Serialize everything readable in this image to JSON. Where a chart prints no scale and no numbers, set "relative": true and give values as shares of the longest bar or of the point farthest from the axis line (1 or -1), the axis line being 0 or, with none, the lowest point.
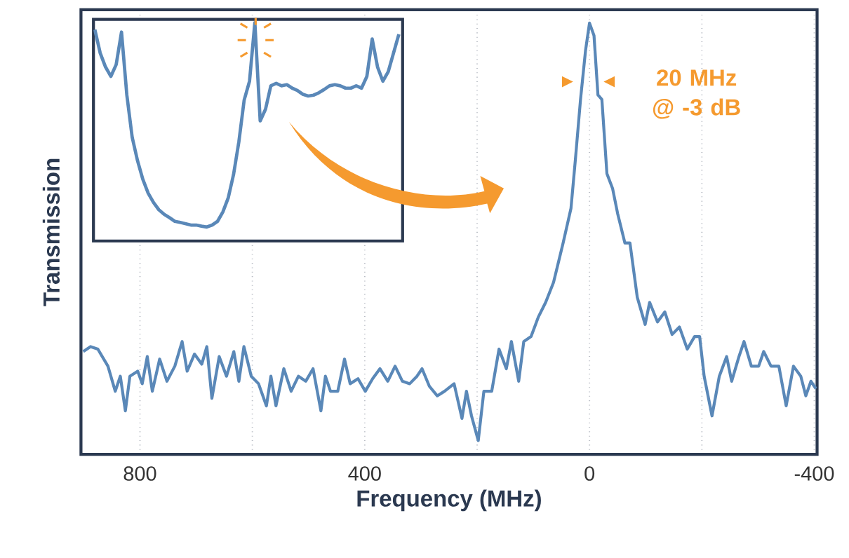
{
  "chart_data": [
    {
      "type": "line",
      "xlabel": "Frequency (MHz)",
      "ylabel": "Transmission",
      "relative": true,
      "grid": "x",
      "xlim": [
        905,
        -405
      ],
      "xticks": [
        800,
        {
          "value": 600,
          "label": null
        },
        400,
        {
          "value": 200,
          "label": null
        },
        0,
        {
          "value": -200,
          "label": null
        },
        -400
      ],
      "annotations": [
        "20 MHz @ -3 dB"
      ],
      "x": [
        901,
        888,
        875,
        857,
        844,
        835,
        826,
        818,
        804,
        796,
        787,
        778,
        765,
        752,
        738,
        725,
        716,
        703,
        690,
        681,
        672,
        659,
        646,
        633,
        624,
        615,
        602,
        589,
        575,
        567,
        558,
        544,
        531,
        518,
        505,
        492,
        478,
        470,
        461,
        448,
        436,
        426,
        412,
        399,
        386,
        373,
        359,
        346,
        333,
        320,
        307,
        298,
        285,
        271,
        258,
        241,
        227,
        219,
        210,
        198,
        188,
        174,
        161,
        148,
        139,
        126,
        117,
        104,
        91,
        78,
        64,
        47,
        33,
        25,
        16,
        7,
        0,
        -8,
        -15,
        -22,
        -31,
        -41,
        -50,
        -63,
        -72,
        -85,
        -99,
        -107,
        -121,
        -134,
        -147,
        -160,
        -174,
        -187,
        -196,
        -204,
        -218,
        -231,
        -244,
        -253,
        -266,
        -275,
        -288,
        -301,
        -310,
        -323,
        -337,
        -350,
        -363,
        -376,
        -385,
        -394,
        -403
      ],
      "series": [
        {
          "color": "#5a88b8",
          "values": [
            0.213,
            0.225,
            0.219,
            0.178,
            0.118,
            0.154,
            0.071,
            0.154,
            0.166,
            0.136,
            0.201,
            0.118,
            0.195,
            0.142,
            0.178,
            0.237,
            0.166,
            0.207,
            0.183,
            0.225,
            0.101,
            0.201,
            0.154,
            0.213,
            0.142,
            0.225,
            0.154,
            0.136,
            0.083,
            0.154,
            0.083,
            0.172,
            0.118,
            0.154,
            0.142,
            0.172,
            0.071,
            0.154,
            0.118,
            0.118,
            0.195,
            0.136,
            0.148,
            0.118,
            0.148,
            0.172,
            0.142,
            0.178,
            0.142,
            0.136,
            0.154,
            0.172,
            0.13,
            0.107,
            0.118,
            0.136,
            0.053,
            0.118,
            0.059,
            0,
            0.118,
            0.118,
            0.219,
            0.172,
            0.237,
            0.142,
            0.237,
            0.249,
            0.296,
            0.331,
            0.379,
            0.473,
            0.556,
            0.675,
            0.817,
            0.935,
            1,
            0.97,
            0.828,
            0.817,
            0.639,
            0.604,
            0.544,
            0.473,
            0.473,
            0.343,
            0.278,
            0.331,
            0.284,
            0.308,
            0.254,
            0.272,
            0.219,
            0.249,
            0.249,
            0.154,
            0.059,
            0.154,
            0.201,
            0.142,
            0.201,
            0.237,
            0.178,
            0.178,
            0.213,
            0.178,
            0.178,
            0.083,
            0.178,
            0.154,
            0.107,
            0.142,
            0.124
          ]
        }
      ]
    },
    {
      "type": "line",
      "relative": true,
      "categories": [
        null,
        null,
        null,
        null,
        null,
        null,
        null,
        null,
        null,
        null,
        null,
        null,
        null,
        null,
        null,
        null,
        null,
        null,
        null,
        null,
        null,
        null,
        null,
        null,
        null,
        null,
        null,
        null,
        null,
        null,
        null,
        null,
        null,
        null,
        null,
        null,
        null,
        null,
        null,
        null,
        null,
        null,
        null,
        null,
        null,
        null,
        null,
        null,
        null,
        null,
        null,
        null,
        null,
        null,
        null,
        null,
        null,
        null
      ],
      "series": [
        {
          "color": "#5a88b8",
          "values": [
            0.968,
            0.861,
            0.797,
            0.754,
            0.808,
            0.957,
            0.668,
            0.475,
            0.368,
            0.282,
            0.219,
            0.176,
            0.143,
            0.122,
            0.107,
            0.09,
            0.085,
            0.079,
            0.073,
            0.073,
            0.068,
            0.064,
            0.073,
            0.09,
            0.133,
            0.197,
            0.304,
            0.454,
            0.646,
            0.732,
            1.0,
            0.55,
            0.604,
            0.711,
            0.722,
            0.711,
            0.716,
            0.7,
            0.689,
            0.672,
            0.664,
            0.668,
            0.679,
            0.694,
            0.711,
            0.716,
            0.711,
            0.7,
            0.7,
            0.711,
            0.7,
            0.754,
            0.925,
            0.797,
            0.732,
            0.775,
            0.861,
            0.947
          ]
        }
      ]
    }
  ]
}
